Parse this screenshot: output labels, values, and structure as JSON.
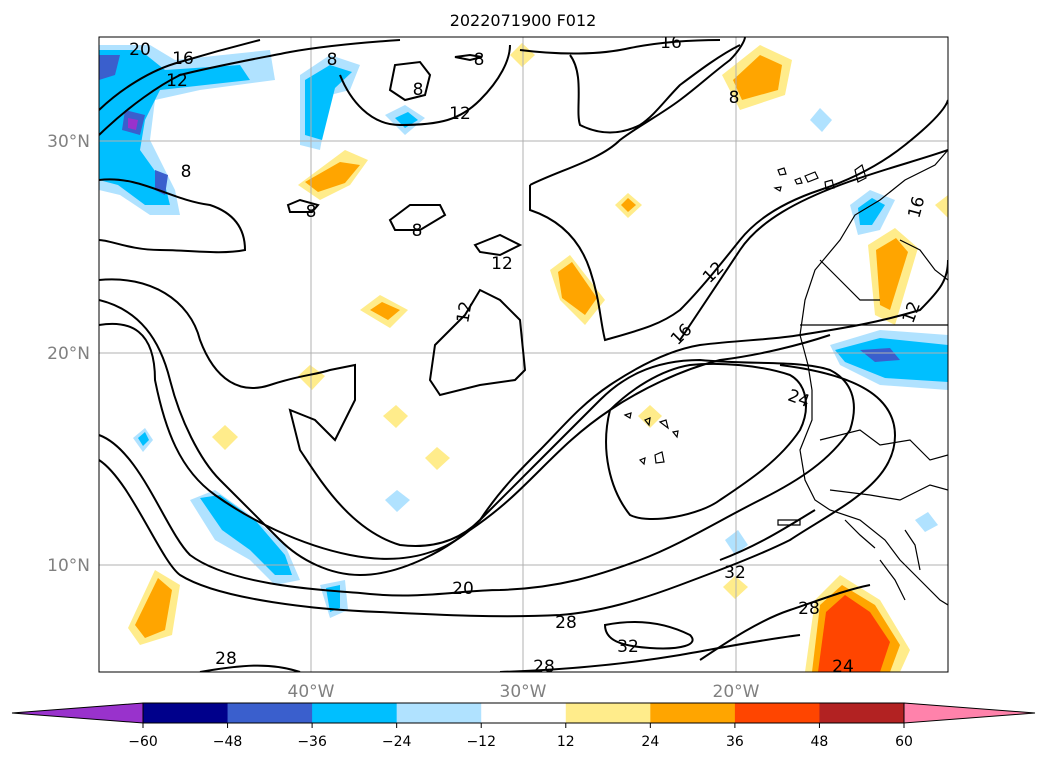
{
  "title": "2022071900 F012",
  "map": {
    "lat_labels": [
      "30°N",
      "20°N",
      "10°N"
    ],
    "lon_labels": [
      "40°W",
      "30°W",
      "20°W"
    ],
    "contour_labels": [
      "20",
      "16",
      "12",
      "8",
      "8",
      "8",
      "16",
      "12",
      "8",
      "8",
      "8",
      "12",
      "8",
      "12",
      "16",
      "12",
      "16",
      "24",
      "12",
      "32",
      "20",
      "28",
      "28",
      "28",
      "32",
      "24",
      "28"
    ]
  },
  "colorbar": {
    "colors": [
      "#9932cc",
      "#00008b",
      "#3a5fcd",
      "#00bfff",
      "#b0e2ff",
      "#ffffff",
      "#ffec8b",
      "#ffa500",
      "#ff4500",
      "#b22222",
      "#ff82ab"
    ],
    "tick_labels": [
      "−60",
      "−48",
      "−36",
      "−24",
      "−12",
      "12",
      "24",
      "36",
      "48",
      "60"
    ]
  },
  "fill_colors": {
    "cyan": "#00bfff",
    "light_blue": "#b0e2ff",
    "blue": "#3a5fcd",
    "purple": "#9932cc",
    "yellow": "#ffec8b",
    "orange": "#ffa500",
    "red_orange": "#ff4500",
    "dark_red": "#b22222"
  }
}
